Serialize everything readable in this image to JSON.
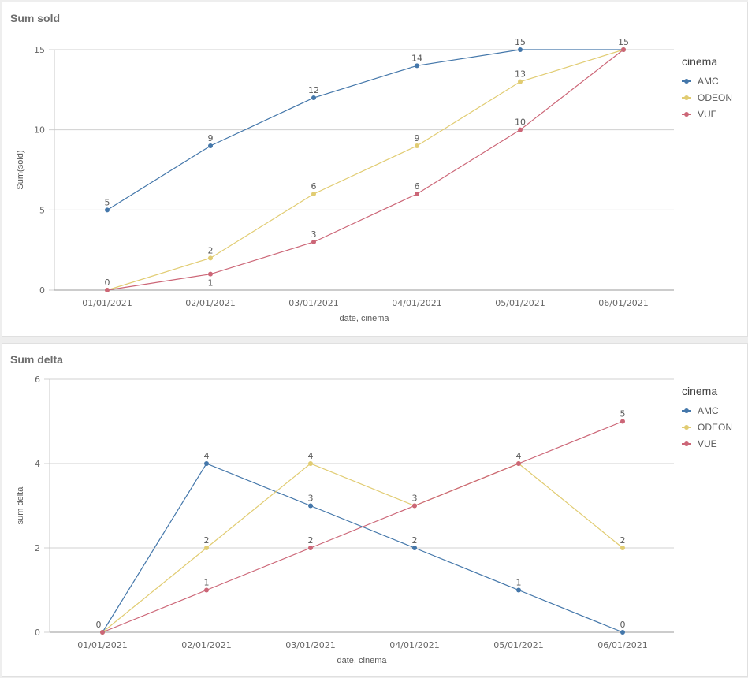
{
  "chart_data": [
    {
      "type": "line",
      "title": "Sum sold",
      "xlabel": "date, cinema",
      "ylabel": "Sum(sold)",
      "categories": [
        "01/01/2021",
        "02/01/2021",
        "03/01/2021",
        "04/01/2021",
        "05/01/2021",
        "06/01/2021"
      ],
      "ylim": [
        0,
        15
      ],
      "yticks": [
        0,
        5,
        10,
        15
      ],
      "grid": true,
      "legend": {
        "title": "cinema",
        "placement": "right"
      },
      "series": [
        {
          "name": "AMC",
          "color": "#4477aa",
          "values": [
            5,
            9,
            12,
            14,
            15,
            15
          ]
        },
        {
          "name": "ODEON",
          "color": "#e1cc72",
          "values": [
            0,
            2,
            6,
            9,
            13,
            15
          ]
        },
        {
          "name": "VUE",
          "color": "#cc6677",
          "values": [
            0,
            1,
            3,
            6,
            10,
            15
          ]
        }
      ]
    },
    {
      "type": "line",
      "title": "Sum delta",
      "xlabel": "date, cinema",
      "ylabel": "sum delta",
      "categories": [
        "01/01/2021",
        "02/01/2021",
        "03/01/2021",
        "04/01/2021",
        "05/01/2021",
        "06/01/2021"
      ],
      "ylim": [
        0,
        6
      ],
      "yticks": [
        0,
        2,
        4,
        6
      ],
      "grid": true,
      "legend": {
        "title": "cinema",
        "placement": "right"
      },
      "series": [
        {
          "name": "AMC",
          "color": "#4477aa",
          "values": [
            0,
            4,
            3,
            2,
            1,
            0
          ]
        },
        {
          "name": "ODEON",
          "color": "#e1cc72",
          "values": [
            0,
            2,
            4,
            3,
            4,
            2
          ]
        },
        {
          "name": "VUE",
          "color": "#cc6677",
          "values": [
            0,
            1,
            2,
            3,
            4,
            5
          ]
        }
      ]
    }
  ]
}
